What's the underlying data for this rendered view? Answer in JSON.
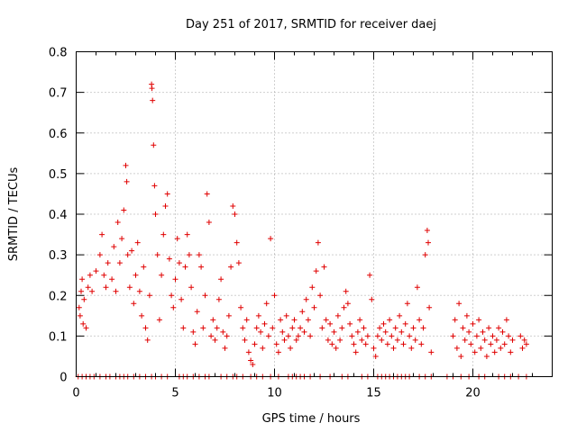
{
  "chart_data": {
    "type": "scatter",
    "title": "Day 251 of 2017, SRMTID for receiver daej",
    "xlabel": "GPS time / hours",
    "ylabel": "SRMTID / TECUs",
    "xlim": [
      0,
      24
    ],
    "ylim": [
      0,
      0.8
    ],
    "xticks": [
      0,
      5,
      10,
      15,
      20
    ],
    "xtick_labels": [
      "0",
      "5",
      "10",
      "15",
      "20"
    ],
    "yticks": [
      0,
      0.1,
      0.2,
      0.3,
      0.4,
      0.5,
      0.6,
      0.7,
      0.8
    ],
    "ytick_labels": [
      "0",
      "0.1",
      "0.2",
      "0.3",
      "0.4",
      "0.5",
      "0.6",
      "0.7",
      "0.8"
    ],
    "grid": true,
    "marker": "+",
    "color": "#e00000",
    "series": [
      {
        "name": "SRMTID",
        "points": [
          [
            0.15,
            0.17
          ],
          [
            0.2,
            0.15
          ],
          [
            0.25,
            0.21
          ],
          [
            0.3,
            0.24
          ],
          [
            0.35,
            0.13
          ],
          [
            0.4,
            0.19
          ],
          [
            0.5,
            0.12
          ],
          [
            0.6,
            0.22
          ],
          [
            0.7,
            0.25
          ],
          [
            0.8,
            0.21
          ],
          [
            1.0,
            0.26
          ],
          [
            1.2,
            0.3
          ],
          [
            1.3,
            0.35
          ],
          [
            1.4,
            0.25
          ],
          [
            1.5,
            0.22
          ],
          [
            1.6,
            0.28
          ],
          [
            1.8,
            0.24
          ],
          [
            1.9,
            0.32
          ],
          [
            2.0,
            0.21
          ],
          [
            2.1,
            0.38
          ],
          [
            2.2,
            0.28
          ],
          [
            2.3,
            0.34
          ],
          [
            2.4,
            0.41
          ],
          [
            2.5,
            0.52
          ],
          [
            2.55,
            0.48
          ],
          [
            2.6,
            0.3
          ],
          [
            2.7,
            0.22
          ],
          [
            2.8,
            0.31
          ],
          [
            2.9,
            0.18
          ],
          [
            3.0,
            0.25
          ],
          [
            3.1,
            0.33
          ],
          [
            3.2,
            0.21
          ],
          [
            3.3,
            0.15
          ],
          [
            3.4,
            0.27
          ],
          [
            3.5,
            0.12
          ],
          [
            3.6,
            0.09
          ],
          [
            3.7,
            0.2
          ],
          [
            3.8,
            0.72
          ],
          [
            3.82,
            0.71
          ],
          [
            3.85,
            0.68
          ],
          [
            3.9,
            0.57
          ],
          [
            3.95,
            0.47
          ],
          [
            4.0,
            0.4
          ],
          [
            4.1,
            0.3
          ],
          [
            4.2,
            0.14
          ],
          [
            4.3,
            0.25
          ],
          [
            4.4,
            0.35
          ],
          [
            4.5,
            0.42
          ],
          [
            4.6,
            0.45
          ],
          [
            4.7,
            0.29
          ],
          [
            4.8,
            0.2
          ],
          [
            4.9,
            0.17
          ],
          [
            5.0,
            0.24
          ],
          [
            5.1,
            0.34
          ],
          [
            5.2,
            0.28
          ],
          [
            5.3,
            0.19
          ],
          [
            5.4,
            0.12
          ],
          [
            5.5,
            0.27
          ],
          [
            5.6,
            0.35
          ],
          [
            5.7,
            0.3
          ],
          [
            5.8,
            0.22
          ],
          [
            5.9,
            0.11
          ],
          [
            6.0,
            0.08
          ],
          [
            6.1,
            0.16
          ],
          [
            6.2,
            0.3
          ],
          [
            6.3,
            0.27
          ],
          [
            6.4,
            0.12
          ],
          [
            6.5,
            0.2
          ],
          [
            6.6,
            0.45
          ],
          [
            6.7,
            0.38
          ],
          [
            6.8,
            0.1
          ],
          [
            6.9,
            0.14
          ],
          [
            7.0,
            0.09
          ],
          [
            7.1,
            0.12
          ],
          [
            7.2,
            0.19
          ],
          [
            7.3,
            0.24
          ],
          [
            7.4,
            0.11
          ],
          [
            7.5,
            0.07
          ],
          [
            7.6,
            0.1
          ],
          [
            7.7,
            0.15
          ],
          [
            7.8,
            0.27
          ],
          [
            7.9,
            0.42
          ],
          [
            8.0,
            0.4
          ],
          [
            8.1,
            0.33
          ],
          [
            8.2,
            0.28
          ],
          [
            8.3,
            0.17
          ],
          [
            8.4,
            0.12
          ],
          [
            8.5,
            0.09
          ],
          [
            8.6,
            0.14
          ],
          [
            8.7,
            0.06
          ],
          [
            8.8,
            0.04
          ],
          [
            8.9,
            0.03
          ],
          [
            9.0,
            0.08
          ],
          [
            9.1,
            0.12
          ],
          [
            9.2,
            0.15
          ],
          [
            9.3,
            0.11
          ],
          [
            9.4,
            0.07
          ],
          [
            9.5,
            0.13
          ],
          [
            9.6,
            0.18
          ],
          [
            9.7,
            0.1
          ],
          [
            9.8,
            0.34
          ],
          [
            9.9,
            0.12
          ],
          [
            10.0,
            0.2
          ],
          [
            10.1,
            0.08
          ],
          [
            10.2,
            0.06
          ],
          [
            10.3,
            0.14
          ],
          [
            10.4,
            0.11
          ],
          [
            10.5,
            0.09
          ],
          [
            10.6,
            0.15
          ],
          [
            10.7,
            0.1
          ],
          [
            10.8,
            0.07
          ],
          [
            10.9,
            0.12
          ],
          [
            11.0,
            0.14
          ],
          [
            11.1,
            0.09
          ],
          [
            11.2,
            0.1
          ],
          [
            11.3,
            0.12
          ],
          [
            11.4,
            0.16
          ],
          [
            11.5,
            0.11
          ],
          [
            11.6,
            0.19
          ],
          [
            11.7,
            0.14
          ],
          [
            11.8,
            0.1
          ],
          [
            11.9,
            0.22
          ],
          [
            12.0,
            0.17
          ],
          [
            12.1,
            0.26
          ],
          [
            12.2,
            0.33
          ],
          [
            12.3,
            0.2
          ],
          [
            12.4,
            0.12
          ],
          [
            12.5,
            0.27
          ],
          [
            12.6,
            0.14
          ],
          [
            12.7,
            0.09
          ],
          [
            12.8,
            0.13
          ],
          [
            12.9,
            0.08
          ],
          [
            13.0,
            0.11
          ],
          [
            13.1,
            0.07
          ],
          [
            13.2,
            0.15
          ],
          [
            13.3,
            0.09
          ],
          [
            13.4,
            0.12
          ],
          [
            13.5,
            0.17
          ],
          [
            13.6,
            0.21
          ],
          [
            13.7,
            0.18
          ],
          [
            13.8,
            0.13
          ],
          [
            13.9,
            0.1
          ],
          [
            14.0,
            0.08
          ],
          [
            14.1,
            0.06
          ],
          [
            14.2,
            0.11
          ],
          [
            14.3,
            0.14
          ],
          [
            14.4,
            0.09
          ],
          [
            14.5,
            0.12
          ],
          [
            14.6,
            0.08
          ],
          [
            14.7,
            0.1
          ],
          [
            14.8,
            0.25
          ],
          [
            14.9,
            0.19
          ],
          [
            15.0,
            0.07
          ],
          [
            15.1,
            0.05
          ],
          [
            15.2,
            0.1
          ],
          [
            15.3,
            0.12
          ],
          [
            15.4,
            0.09
          ],
          [
            15.5,
            0.13
          ],
          [
            15.6,
            0.11
          ],
          [
            15.7,
            0.08
          ],
          [
            15.8,
            0.14
          ],
          [
            15.9,
            0.1
          ],
          [
            16.0,
            0.07
          ],
          [
            16.1,
            0.12
          ],
          [
            16.2,
            0.09
          ],
          [
            16.3,
            0.15
          ],
          [
            16.4,
            0.11
          ],
          [
            16.5,
            0.08
          ],
          [
            16.6,
            0.13
          ],
          [
            16.7,
            0.18
          ],
          [
            16.8,
            0.1
          ],
          [
            16.9,
            0.07
          ],
          [
            17.0,
            0.12
          ],
          [
            17.1,
            0.09
          ],
          [
            17.2,
            0.22
          ],
          [
            17.3,
            0.14
          ],
          [
            17.4,
            0.08
          ],
          [
            17.5,
            0.12
          ],
          [
            17.6,
            0.3
          ],
          [
            17.7,
            0.36
          ],
          [
            17.75,
            0.33
          ],
          [
            17.8,
            0.17
          ],
          [
            17.9,
            0.06
          ],
          [
            19.0,
            0.1
          ],
          [
            19.1,
            0.14
          ],
          [
            19.2,
            0.07
          ],
          [
            19.3,
            0.18
          ],
          [
            19.4,
            0.05
          ],
          [
            19.5,
            0.12
          ],
          [
            19.6,
            0.09
          ],
          [
            19.7,
            0.15
          ],
          [
            19.8,
            0.11
          ],
          [
            19.9,
            0.08
          ],
          [
            20.0,
            0.13
          ],
          [
            20.1,
            0.06
          ],
          [
            20.2,
            0.1
          ],
          [
            20.3,
            0.14
          ],
          [
            20.4,
            0.07
          ],
          [
            20.5,
            0.11
          ],
          [
            20.6,
            0.09
          ],
          [
            20.7,
            0.05
          ],
          [
            20.8,
            0.12
          ],
          [
            20.9,
            0.08
          ],
          [
            21.0,
            0.1
          ],
          [
            21.1,
            0.06
          ],
          [
            21.2,
            0.09
          ],
          [
            21.3,
            0.12
          ],
          [
            21.4,
            0.07
          ],
          [
            21.5,
            0.11
          ],
          [
            21.6,
            0.08
          ],
          [
            21.7,
            0.14
          ],
          [
            21.8,
            0.1
          ],
          [
            21.9,
            0.06
          ],
          [
            22.0,
            0.09
          ],
          [
            22.4,
            0.1
          ],
          [
            22.5,
            0.07
          ],
          [
            22.6,
            0.09
          ],
          [
            22.7,
            0.08
          ]
        ]
      }
    ],
    "zero_line_points_x": [
      0.1,
      0.3,
      0.5,
      0.7,
      0.9,
      1.2,
      1.5,
      1.7,
      2.0,
      2.2,
      2.4,
      2.6,
      2.9,
      3.2,
      3.5,
      3.8,
      4.0,
      4.3,
      4.6,
      5.2,
      5.4,
      5.6,
      5.9,
      6.2,
      6.5,
      6.7,
      7.3,
      7.6,
      7.9,
      8.1,
      8.4,
      8.8,
      9.1,
      9.4,
      9.8,
      10.2,
      10.7,
      10.9,
      11.1,
      11.3,
      11.5,
      11.8,
      12.3,
      12.8,
      13.4,
      13.7,
      14.4,
      14.7,
      15.2,
      15.4,
      15.6,
      15.8,
      16.0,
      16.2,
      16.4,
      16.6,
      16.8,
      17.3,
      17.6,
      17.9,
      18.7,
      19.0,
      19.4,
      19.8,
      20.3,
      20.6,
      21.3,
      21.6,
      21.9,
      22.3,
      22.7
    ]
  }
}
